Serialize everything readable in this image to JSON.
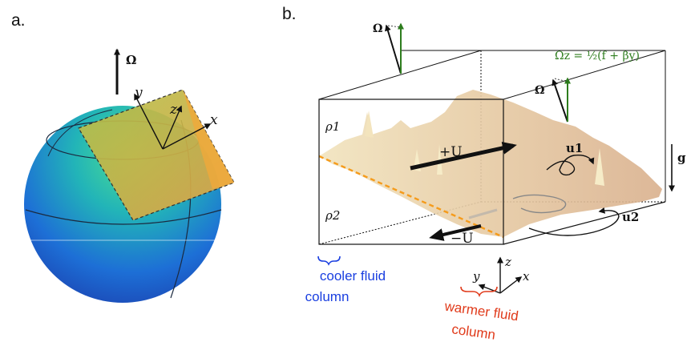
{
  "panels": {
    "a": {
      "label": "a.",
      "omega": "Ω",
      "axis_x": "x",
      "axis_y": "y",
      "axis_z": "z"
    },
    "b": {
      "label": "b.",
      "omega_top": "Ω",
      "omega_mid": "Ω",
      "omega_z": "Ωz = ½(f + βy)",
      "rho1": "ρ1",
      "rho2": "ρ2",
      "plus_u": "+U",
      "minus_u": "−U",
      "u1": "u1",
      "u2": "u2",
      "g": "g",
      "axis_x": "x",
      "axis_y": "y",
      "axis_z": "z",
      "cooler_line1": "cooler fluid",
      "cooler_line2": "column",
      "warmer_line1": "warmer fluid",
      "warmer_line2": "column"
    }
  },
  "colors": {
    "ink": "#111111",
    "green": "#2e7d1e",
    "blue": "#1a3fe0",
    "red": "#e03a1a",
    "orange_dash": "#f59b1b",
    "surface": "#e6cfa9"
  }
}
